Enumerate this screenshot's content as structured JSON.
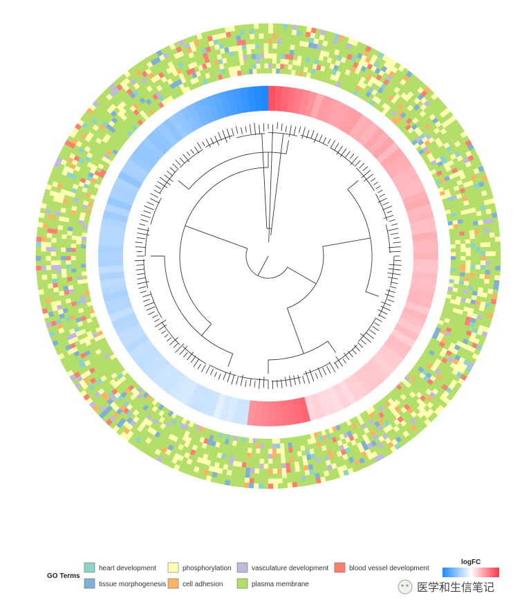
{
  "chart_data": {
    "type": "circular-heatmap-dendrogram",
    "legend": {
      "go_title": "GO Terms",
      "go_terms": [
        {
          "label": "heart development",
          "color": "#8dd3c7"
        },
        {
          "label": "phosphorylation",
          "color": "#ffffb3"
        },
        {
          "label": "vasculature development",
          "color": "#bebada"
        },
        {
          "label": "blood vessel development",
          "color": "#fb8072"
        },
        {
          "label": "tissue morphogenesis",
          "color": "#80b1d3"
        },
        {
          "label": "cell adhesion",
          "color": "#fdb462"
        },
        {
          "label": "plasma membrane",
          "color": "#b3de69"
        }
      ],
      "logfc_title": "logFC",
      "logfc_colors": [
        "#1e88ff",
        "#ffffff",
        "#ff3344"
      ]
    },
    "watermark": "医学和生信笔记"
  }
}
